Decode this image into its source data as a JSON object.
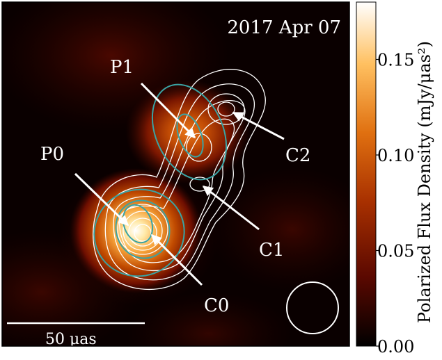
{
  "chart_data": {
    "type": "heatmap",
    "title": "2017 Apr 07",
    "colorbar": {
      "label": "Polarized Flux Density (mJy/μas²)",
      "ticks": [
        {
          "value": 0.0,
          "label": "0.00"
        },
        {
          "value": 0.05,
          "label": "0.05"
        },
        {
          "value": 0.1,
          "label": "0.10"
        },
        {
          "value": 0.15,
          "label": "0.15"
        }
      ],
      "range": [
        0.0,
        0.18
      ],
      "colormap": "afmhot",
      "colors": [
        "#000000",
        "#6e0a00",
        "#c04a00",
        "#f08a20",
        "#ffd070",
        "#ffffff"
      ]
    },
    "components": {
      "polarized": [
        "P0",
        "P1"
      ],
      "total_intensity": [
        "C0",
        "C1",
        "C2"
      ]
    },
    "scale_bar": {
      "label": "50 μas",
      "length_uas": 50
    },
    "beam": "circular restoring beam",
    "contour_colors": {
      "total_intensity": "#ffffff",
      "polarized": "#3aa3a3"
    }
  }
}
